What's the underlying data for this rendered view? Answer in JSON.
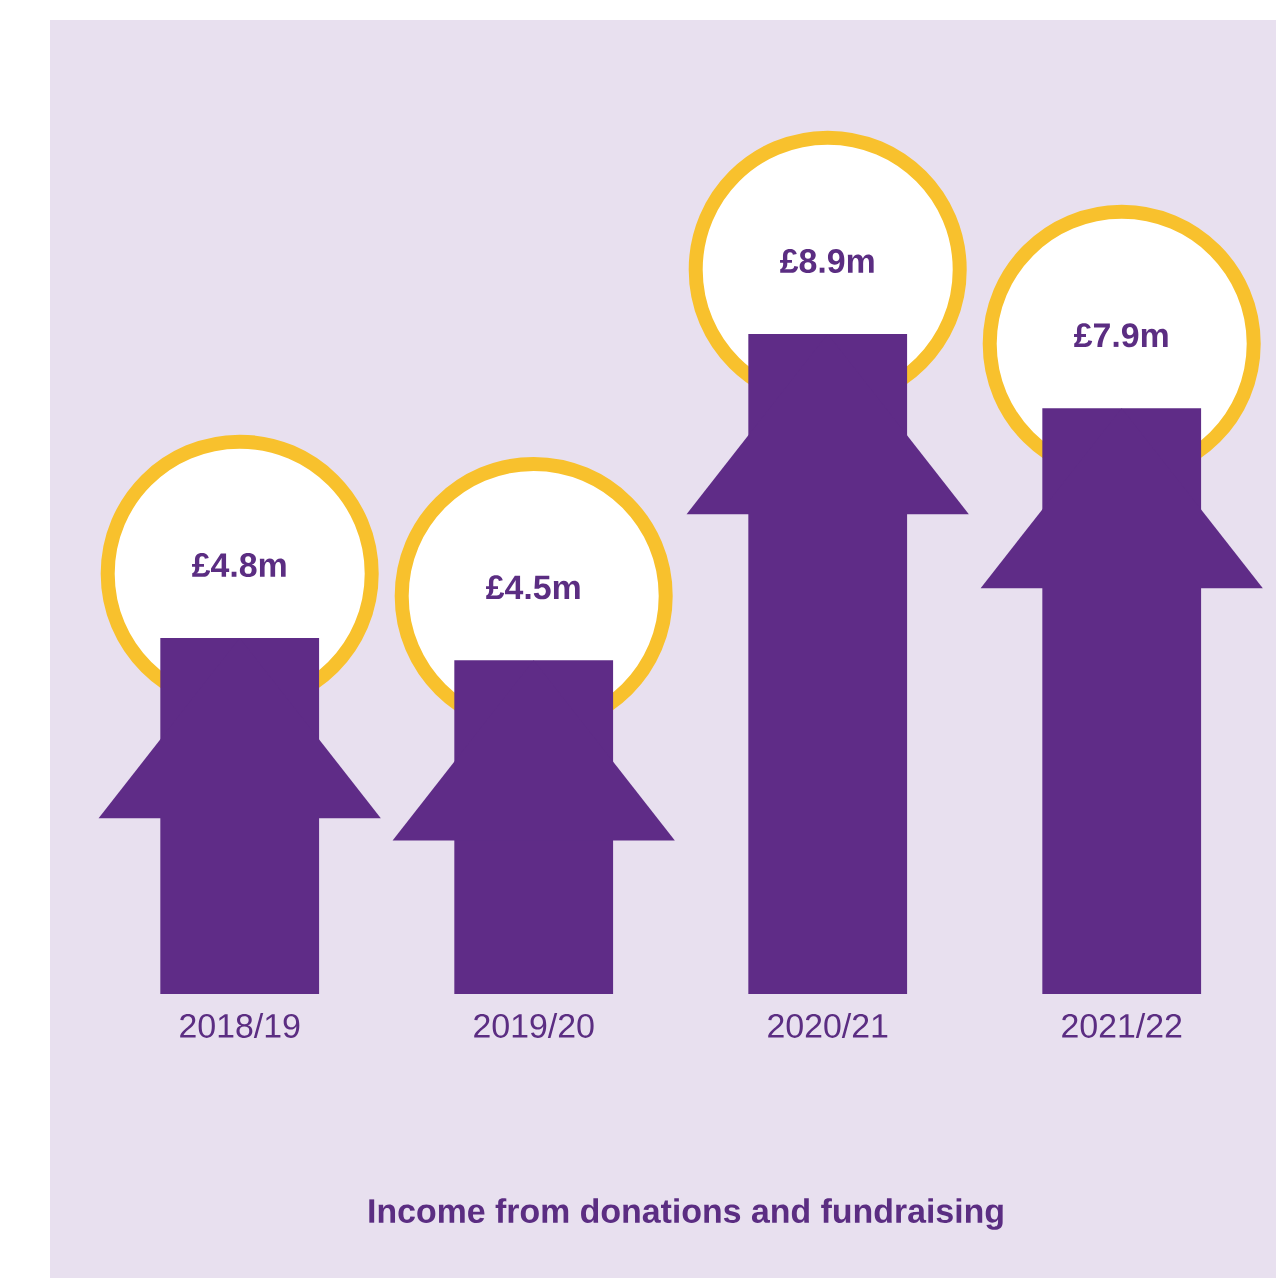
{
  "chart_data": {
    "type": "bar",
    "title": "Income from donations and fundraising",
    "categories": [
      "2018/19",
      "2019/20",
      "2020/21",
      "2021/22"
    ],
    "values": [
      4.8,
      4.5,
      8.9,
      7.9
    ],
    "value_labels": [
      "£4.8m",
      "£4.5m",
      "£8.9m",
      "£7.9m"
    ],
    "color": "#5f2c87"
  }
}
